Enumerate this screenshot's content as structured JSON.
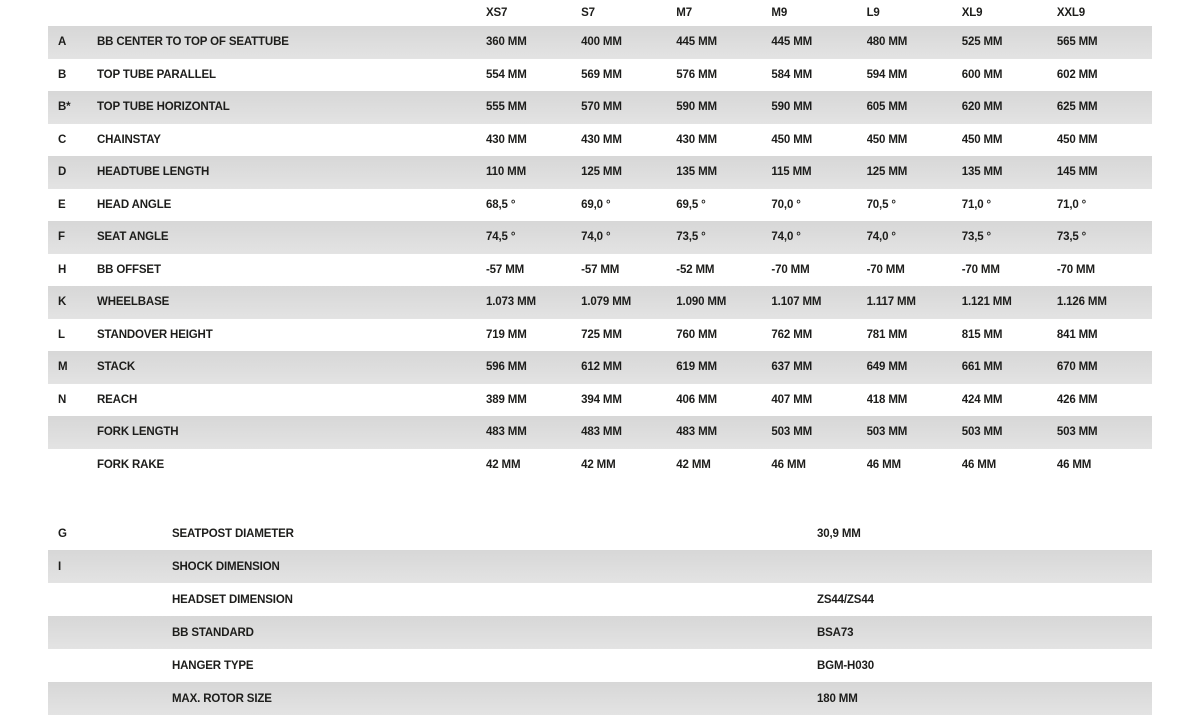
{
  "table_main": {
    "columns": [
      "XS7",
      "S7",
      "M7",
      "M9",
      "L9",
      "XL9",
      "XXL9"
    ],
    "rows": [
      {
        "key": "A",
        "label": "BB CENTER TO TOP OF SEATTUBE",
        "values": [
          "360 MM",
          "400 MM",
          "445 MM",
          "445 MM",
          "480 MM",
          "525 MM",
          "565 MM"
        ]
      },
      {
        "key": "B",
        "label": "TOP TUBE PARALLEL",
        "values": [
          "554 MM",
          "569 MM",
          "576 MM",
          "584 MM",
          "594 MM",
          "600 MM",
          "602 MM"
        ]
      },
      {
        "key": "B*",
        "label": "TOP TUBE HORIZONTAL",
        "values": [
          "555 MM",
          "570 MM",
          "590 MM",
          "590 MM",
          "605 MM",
          "620 MM",
          "625 MM"
        ]
      },
      {
        "key": "C",
        "label": "CHAINSTAY",
        "values": [
          "430 MM",
          "430 MM",
          "430 MM",
          "450 MM",
          "450 MM",
          "450 MM",
          "450 MM"
        ]
      },
      {
        "key": "D",
        "label": "HEADTUBE LENGTH",
        "values": [
          "110 MM",
          "125 MM",
          "135 MM",
          "115 MM",
          "125 MM",
          "135 MM",
          "145 MM"
        ]
      },
      {
        "key": "E",
        "label": "HEAD ANGLE",
        "values": [
          "68,5 °",
          "69,0 °",
          "69,5 °",
          "70,0 °",
          "70,5 °",
          "71,0 °",
          "71,0 °"
        ]
      },
      {
        "key": "F",
        "label": "SEAT ANGLE",
        "values": [
          "74,5 °",
          "74,0 °",
          "73,5 °",
          "74,0 °",
          "74,0 °",
          "73,5 °",
          "73,5 °"
        ]
      },
      {
        "key": "H",
        "label": "BB OFFSET",
        "values": [
          "-57 MM",
          "-57 MM",
          "-52 MM",
          "-70 MM",
          "-70 MM",
          "-70 MM",
          "-70 MM"
        ]
      },
      {
        "key": "K",
        "label": "WHEELBASE",
        "values": [
          "1.073 MM",
          "1.079 MM",
          "1.090 MM",
          "1.107 MM",
          "1.117 MM",
          "1.121 MM",
          "1.126 MM"
        ]
      },
      {
        "key": "L",
        "label": "STANDOVER HEIGHT",
        "values": [
          "719 MM",
          "725 MM",
          "760 MM",
          "762 MM",
          "781 MM",
          "815 MM",
          "841 MM"
        ]
      },
      {
        "key": "M",
        "label": "STACK",
        "values": [
          "596 MM",
          "612 MM",
          "619 MM",
          "637 MM",
          "649 MM",
          "661 MM",
          "670 MM"
        ]
      },
      {
        "key": "N",
        "label": "REACH",
        "values": [
          "389 MM",
          "394 MM",
          "406 MM",
          "407 MM",
          "418 MM",
          "424 MM",
          "426 MM"
        ]
      },
      {
        "key": "",
        "label": "FORK LENGTH",
        "values": [
          "483 MM",
          "483 MM",
          "483 MM",
          "503 MM",
          "503 MM",
          "503 MM",
          "503 MM"
        ]
      },
      {
        "key": "",
        "label": "FORK RAKE",
        "values": [
          "42 MM",
          "42 MM",
          "42 MM",
          "46 MM",
          "46 MM",
          "46 MM",
          "46 MM"
        ]
      }
    ]
  },
  "table_specs": {
    "rows": [
      {
        "key": "G",
        "label": "SEATPOST DIAMETER",
        "value": "30,9 MM"
      },
      {
        "key": "I",
        "label": "SHOCK DIMENSION",
        "value": ""
      },
      {
        "key": "",
        "label": "HEADSET DIMENSION",
        "value": "ZS44/ZS44"
      },
      {
        "key": "",
        "label": "BB STANDARD",
        "value": "BSA73"
      },
      {
        "key": "",
        "label": "HANGER TYPE",
        "value": "BGM-H030"
      },
      {
        "key": "",
        "label": "MAX. ROTOR SIZE",
        "value": "180 MM"
      }
    ]
  },
  "colors": {
    "stripe": "#dcdcdc",
    "text": "#1d1d1b",
    "background": "#ffffff"
  }
}
